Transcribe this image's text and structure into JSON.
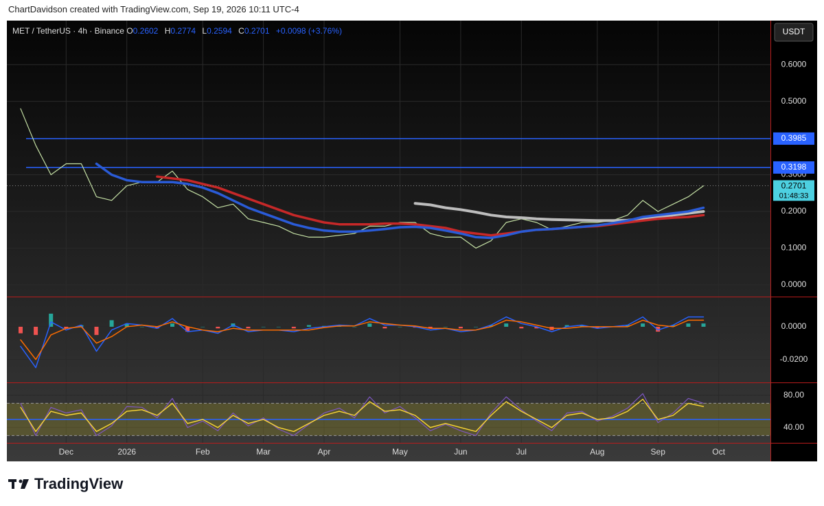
{
  "header": {
    "credit": "ChartDavidson created with TradingView.com, Sep 19, 2026 10:11 UTC-4",
    "currency": "USDT"
  },
  "legend": {
    "symbol": "MET / TetherUS · 4h · Binance",
    "open_label": "O",
    "open": 0.2602,
    "high_label": "H",
    "high": 0.2774,
    "low_label": "L",
    "low": 0.2594,
    "close_label": "C",
    "close": 0.2701,
    "change": "+0.0098 (+3.76%)"
  },
  "footer": {
    "brand": "TradingView"
  },
  "chart_data": [
    {
      "type": "line",
      "categories": [
        null,
        null,
        null,
        "Dec",
        null,
        null,
        null,
        "2026",
        null,
        null,
        null,
        null,
        "Feb",
        null,
        null,
        null,
        "Mar",
        null,
        null,
        null,
        "Apr",
        null,
        null,
        null,
        null,
        "May",
        null,
        null,
        null,
        "Jun",
        null,
        null,
        null,
        "Jul",
        null,
        null,
        null,
        null,
        "Aug",
        null,
        null,
        null,
        "Sep",
        null,
        null,
        null,
        "Oct"
      ],
      "ylim": [
        -0.032,
        0.72
      ],
      "yticks": [
        {
          "value": 0.6,
          "label": "0.6000"
        },
        {
          "value": 0.5,
          "label": "0.5000"
        },
        {
          "value": 0.3,
          "label": "0.3000"
        },
        {
          "value": 0.2,
          "label": "0.2000"
        },
        {
          "value": 0.1,
          "label": "0.1000"
        },
        {
          "value": 0,
          "label": "0.0000"
        }
      ],
      "grid": true,
      "series": [
        {
          "color": "#c5e1a5",
          "width": 1.2,
          "values": [
            0.48,
            0.38,
            0.3,
            0.33,
            0.33,
            0.24,
            0.23,
            0.27,
            0.28,
            0.28,
            0.31,
            0.26,
            0.24,
            0.21,
            0.22,
            0.18,
            0.17,
            0.16,
            0.14,
            0.13,
            0.13,
            0.135,
            0.14,
            0.16,
            0.16,
            0.17,
            0.17,
            0.14,
            0.13,
            0.13,
            0.1,
            0.12,
            0.17,
            0.18,
            0.17,
            0.15,
            0.16,
            0.17,
            0.17,
            0.175,
            0.19,
            0.23,
            0.2,
            0.22,
            0.24,
            0.27,
            null
          ]
        },
        {
          "color": "#bdbdbd",
          "width": 4,
          "values": [
            null,
            null,
            null,
            null,
            null,
            null,
            null,
            null,
            null,
            null,
            null,
            null,
            null,
            null,
            null,
            null,
            null,
            null,
            null,
            null,
            null,
            null,
            null,
            null,
            null,
            null,
            0.222,
            0.218,
            0.21,
            0.205,
            0.198,
            0.19,
            0.185,
            0.183,
            0.18,
            0.178,
            0.177,
            0.176,
            0.175,
            0.175,
            0.176,
            0.18,
            0.185,
            0.19,
            0.195,
            0.2,
            null
          ]
        },
        {
          "color": "#c62828",
          "width": 3.5,
          "values": [
            null,
            null,
            null,
            null,
            null,
            null,
            null,
            null,
            null,
            0.295,
            0.29,
            0.285,
            0.275,
            0.265,
            0.25,
            0.235,
            0.22,
            0.205,
            0.19,
            0.18,
            0.17,
            0.165,
            0.165,
            0.165,
            0.167,
            0.167,
            0.165,
            0.16,
            0.155,
            0.145,
            0.14,
            0.135,
            0.14,
            0.145,
            0.15,
            0.152,
            0.155,
            0.158,
            0.16,
            0.165,
            0.17,
            0.175,
            0.18,
            0.183,
            0.185,
            0.19,
            null
          ]
        },
        {
          "color": "#2a5bd7",
          "width": 3.5,
          "values": [
            null,
            null,
            null,
            null,
            null,
            0.33,
            0.3,
            0.285,
            0.28,
            0.28,
            0.28,
            0.275,
            0.265,
            0.25,
            0.23,
            0.21,
            0.195,
            0.18,
            0.165,
            0.155,
            0.148,
            0.145,
            0.145,
            0.148,
            0.152,
            0.157,
            0.158,
            0.155,
            0.148,
            0.14,
            0.13,
            0.128,
            0.135,
            0.145,
            0.15,
            0.152,
            0.155,
            0.158,
            0.162,
            0.168,
            0.175,
            0.185,
            0.19,
            0.195,
            0.2,
            0.21,
            null
          ]
        }
      ],
      "levels": [
        {
          "value": 0.3985,
          "color": "#2962ff"
        },
        {
          "value": 0.3198,
          "color": "#2962ff"
        }
      ],
      "last_price": 0.2701,
      "countdown": "01:48:33",
      "last_price_color": "#4dd0e1"
    },
    {
      "type": "line",
      "ylim": [
        -0.034,
        0.018
      ],
      "yticks": [
        {
          "value": 0,
          "label": "0.0000"
        },
        {
          "value": -0.02,
          "label": "-0.0200"
        }
      ],
      "colors": {
        "up": "#26a69a",
        "down": "#ef5350"
      },
      "series": [
        {
          "type": "bar",
          "values": [
            -0.004,
            -0.005,
            0.008,
            -0.001,
            0.001,
            -0.005,
            0.004,
            0.002,
            0,
            -0.001,
            0.002,
            -0.003,
            0,
            -0.001,
            0.002,
            -0.001,
            0,
            0,
            -0.001,
            0.001,
            0.0005,
            0.0005,
            0,
            0.002,
            -0.001,
            0,
            -0.0005,
            -0.001,
            0,
            -0.001,
            0,
            0.001,
            0.002,
            -0.001,
            -0.001,
            -0.002,
            0.001,
            0.001,
            -0.001,
            0,
            0.001,
            0.002,
            -0.003,
            0.001,
            0.002,
            0.002,
            null
          ]
        },
        {
          "color": "#2962ff",
          "width": 1.5,
          "values": [
            -0.012,
            -0.025,
            0.003,
            -0.002,
            0.001,
            -0.015,
            -0.002,
            0.002,
            0.001,
            -0.001,
            0.005,
            -0.003,
            -0.002,
            -0.004,
            0.001,
            -0.003,
            -0.002,
            -0.002,
            -0.003,
            -0.001,
            0,
            0.001,
            0.0005,
            0.005,
            0.001,
            0.001,
            0,
            -0.002,
            -0.001,
            -0.003,
            -0.002,
            0.001,
            0.006,
            0.002,
            0,
            -0.003,
            0,
            0.001,
            -0.001,
            0,
            0.001,
            0.006,
            -0.002,
            0.001,
            0.006,
            0.006,
            null
          ]
        },
        {
          "color": "#ff6d00",
          "width": 1.5,
          "values": [
            -0.008,
            -0.02,
            -0.005,
            -0.001,
            0,
            -0.01,
            -0.006,
            0,
            0.001,
            0,
            0.003,
            0,
            -0.002,
            -0.003,
            -0.001,
            -0.002,
            -0.002,
            -0.002,
            -0.002,
            -0.002,
            -0.0005,
            0.0005,
            0.0005,
            0.003,
            0.002,
            0.001,
            0.0005,
            -0.001,
            -0.001,
            -0.002,
            -0.002,
            0,
            0.004,
            0.003,
            0.001,
            -0.001,
            -0.001,
            0,
            0,
            0,
            0,
            0.004,
            0.001,
            0,
            0.004,
            0.004,
            null
          ]
        }
      ]
    },
    {
      "type": "line",
      "ylim": [
        21,
        95
      ],
      "yticks": [
        {
          "value": 80,
          "label": "80.00"
        },
        {
          "value": 40,
          "label": "40.00"
        }
      ],
      "bands": [
        70,
        30
      ],
      "midline": 50,
      "series": [
        {
          "color": "#7e57c2",
          "width": 1.2,
          "values": [
            70,
            30,
            65,
            58,
            62,
            30,
            42,
            66,
            65,
            52,
            76,
            40,
            48,
            36,
            58,
            42,
            52,
            38,
            30,
            44,
            58,
            64,
            52,
            78,
            58,
            66,
            52,
            36,
            44,
            36,
            30,
            58,
            78,
            62,
            48,
            36,
            58,
            60,
            48,
            54,
            64,
            82,
            46,
            58,
            76,
            70,
            null
          ]
        },
        {
          "color": "#fdd835",
          "width": 1.4,
          "values": [
            65,
            35,
            60,
            55,
            58,
            35,
            45,
            60,
            62,
            55,
            70,
            45,
            50,
            40,
            55,
            45,
            50,
            40,
            35,
            45,
            55,
            60,
            55,
            72,
            60,
            62,
            55,
            40,
            45,
            40,
            35,
            55,
            72,
            60,
            50,
            40,
            55,
            58,
            50,
            52,
            60,
            75,
            50,
            55,
            70,
            66,
            null
          ]
        }
      ]
    }
  ]
}
